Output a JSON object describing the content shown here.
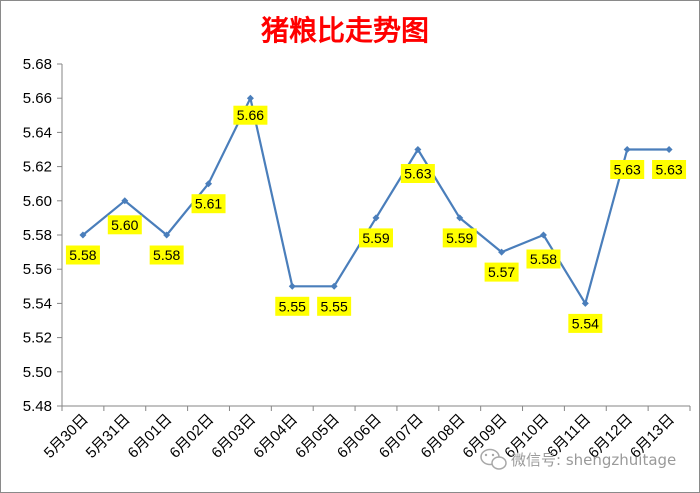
{
  "chart_data": {
    "type": "line",
    "title": "猪粮比走势图",
    "categories": [
      "5月30日",
      "5月31日",
      "6月01日",
      "6月02日",
      "6月03日",
      "6月04日",
      "6月05日",
      "6月06日",
      "6月07日",
      "6月08日",
      "6月09日",
      "6月10日",
      "6月11日",
      "6月12日",
      "6月13日"
    ],
    "series": [
      {
        "values": [
          5.58,
          5.6,
          5.58,
          5.61,
          5.66,
          5.55,
          5.55,
          5.59,
          5.63,
          5.59,
          5.57,
          5.58,
          5.54,
          5.63,
          5.63
        ]
      }
    ],
    "data_labels": [
      "5.58",
      "5.60",
      "5.58",
      "5.61",
      "5.66",
      "5.55",
      "5.55",
      "5.59",
      "5.63",
      "5.59",
      "5.57",
      "5.58",
      "5.54",
      "5.63",
      "5.63"
    ],
    "ylim": [
      5.48,
      5.68
    ],
    "yticks": [
      "5.48",
      "5.50",
      "5.52",
      "5.54",
      "5.56",
      "5.58",
      "5.60",
      "5.62",
      "5.64",
      "5.66",
      "5.68"
    ],
    "grid": false,
    "legend": "none",
    "colors": {
      "line": "#4a7ebb",
      "title": "#ff0000",
      "label_bg": "#ffff00",
      "axis": "#868686"
    }
  },
  "watermark": {
    "icon": "wechat-icon",
    "text": "微信号: shengzhuitage"
  }
}
